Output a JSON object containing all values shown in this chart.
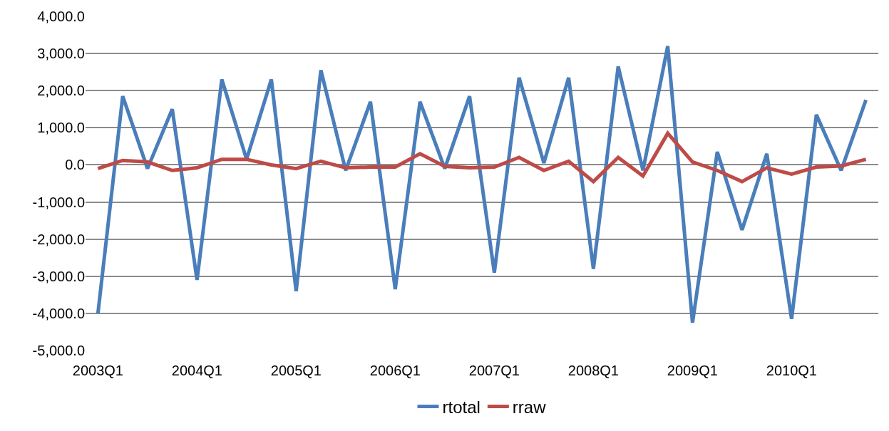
{
  "chart_data": {
    "type": "line",
    "categories": [
      "2003Q1",
      null,
      null,
      null,
      "2004Q1",
      null,
      null,
      null,
      "2005Q1",
      null,
      null,
      null,
      "2006Q1",
      null,
      null,
      null,
      "2007Q1",
      null,
      null,
      null,
      "2008Q1",
      null,
      null,
      null,
      "2009Q1",
      null,
      null,
      null,
      "2010Q1",
      null,
      null,
      null
    ],
    "series": [
      {
        "name": "rtotal",
        "color": "#4a7ebb",
        "values": [
          -4000,
          1850,
          -100,
          1500,
          -3100,
          2300,
          150,
          2300,
          -3400,
          2550,
          -150,
          1700,
          -3350,
          1700,
          -100,
          1850,
          -2900,
          2350,
          50,
          2350,
          -2800,
          2650,
          -150,
          3200,
          -4250,
          350,
          -1750,
          300,
          -4150,
          1350,
          -150,
          1750
        ]
      },
      {
        "name": "rraw",
        "color": "#be4b48",
        "values": [
          -100,
          120,
          80,
          -150,
          -80,
          150,
          150,
          0,
          -100,
          100,
          -80,
          -60,
          -60,
          300,
          -40,
          -80,
          -60,
          200,
          -150,
          100,
          -450,
          200,
          -300,
          850,
          80,
          -150,
          -450,
          -80,
          -250,
          -60,
          -30,
          150
        ]
      }
    ],
    "ylim": [
      -5000,
      4000
    ],
    "yticks": [
      {
        "value": -5000,
        "label": "-5,000.0"
      },
      {
        "value": -4000,
        "label": "-4,000.0"
      },
      {
        "value": -3000,
        "label": "-3,000.0"
      },
      {
        "value": -2000,
        "label": "-2,000.0"
      },
      {
        "value": -1000,
        "label": "-1,000.0"
      },
      {
        "value": 0,
        "label": "0.0"
      },
      {
        "value": 1000,
        "label": "1,000.0"
      },
      {
        "value": 2000,
        "label": "2,000.0"
      },
      {
        "value": 3000,
        "label": "3,000.0"
      },
      {
        "value": 4000,
        "label": "4,000.0"
      }
    ],
    "grid": "y",
    "legend": "bottom",
    "marker": "none",
    "line_style": "solid"
  }
}
